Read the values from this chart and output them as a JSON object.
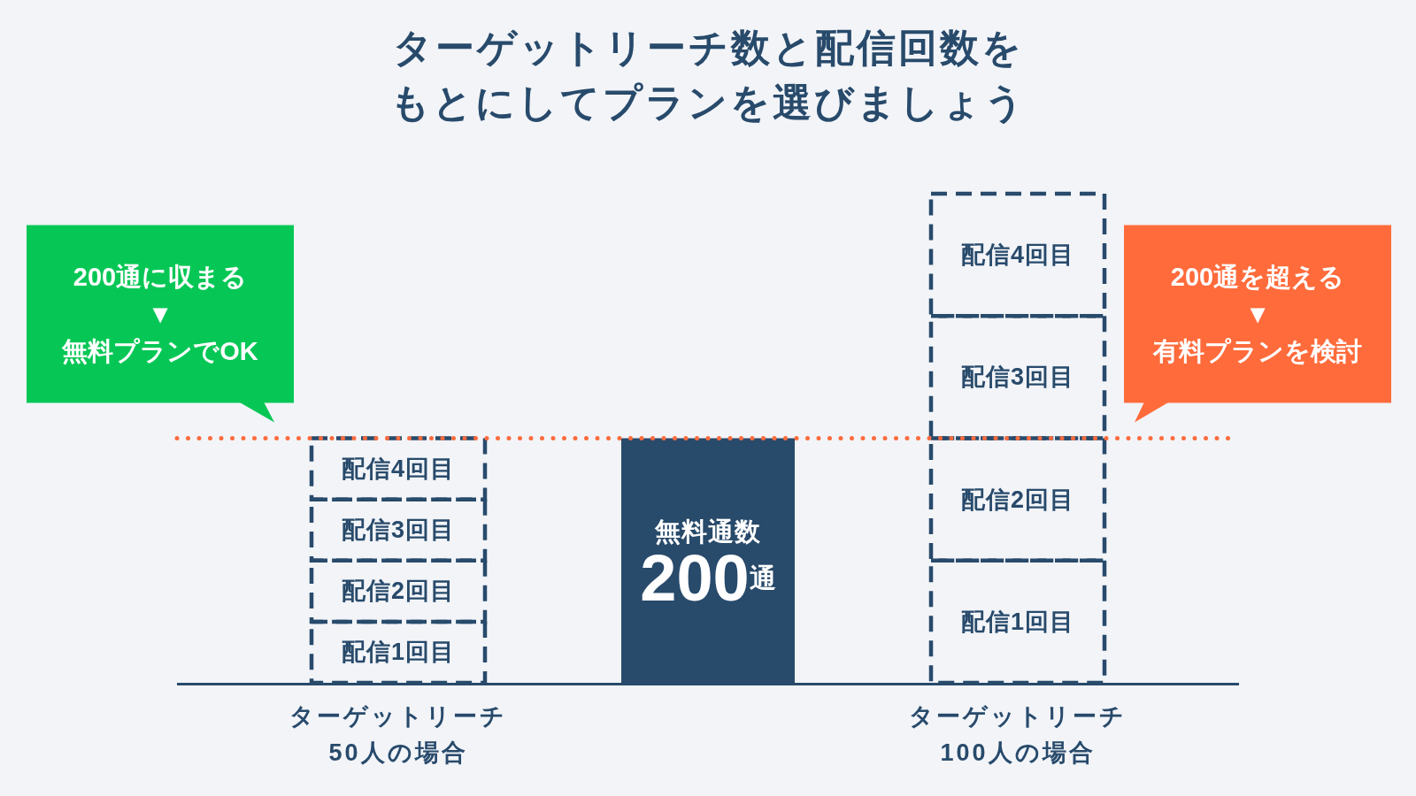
{
  "chart_data": {
    "type": "bar",
    "title": "ターゲットリーチ数と配信回数をもとにしてプランを選びましょう",
    "categories": [
      "ターゲットリーチ\n50人の場合",
      null,
      "ターゲットリーチ\n100人の場合"
    ],
    "stacked": true,
    "ylim": [
      0,
      400
    ],
    "series": [
      {
        "name": "配信1回目",
        "color": "#284a6b",
        "line_style": "dashed",
        "values": [
          50,
          null,
          100
        ]
      },
      {
        "name": "配信2回目",
        "color": "#284a6b",
        "line_style": "dashed",
        "values": [
          50,
          null,
          100
        ]
      },
      {
        "name": "配信3回目",
        "color": "#284a6b",
        "line_style": "dashed",
        "values": [
          50,
          null,
          100
        ]
      },
      {
        "name": "配信4回目",
        "color": "#284a6b",
        "line_style": "dashed",
        "values": [
          50,
          null,
          100
        ]
      },
      {
        "name": "無料通数",
        "color": "#284a6b",
        "values": [
          null,
          200,
          null
        ],
        "value_labels": [
          null,
          "200通",
          null
        ]
      }
    ],
    "ref_lines": [
      {
        "axis": "y",
        "value": 200,
        "color": "#ff6b3d",
        "line_style": "dotted"
      }
    ],
    "annotations": [
      "200通に収まる\n▼\n無料プランでOK",
      "200通を超える\n▼\n有料プランを検討"
    ]
  }
}
